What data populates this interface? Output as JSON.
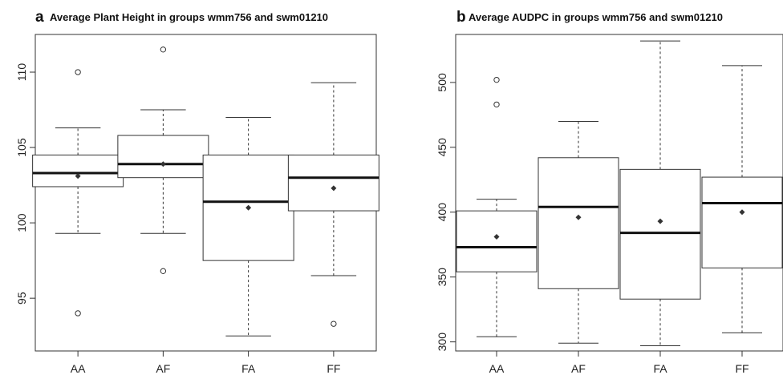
{
  "chart_data": [
    {
      "type": "box",
      "panel_letter": "a",
      "title": "Average Plant Height in groups wmm756 and swm01210",
      "xlabel": "",
      "ylabel": "",
      "categories": [
        "AA",
        "AF",
        "FA",
        "FF"
      ],
      "ylim": [
        91.5,
        112.5
      ],
      "yticks": [
        95,
        100,
        105,
        110
      ],
      "boxes": [
        {
          "category": "AA",
          "whisker_low": 99.3,
          "q1": 102.4,
          "median": 103.3,
          "q3": 104.5,
          "whisker_high": 106.3,
          "mean": 103.1,
          "outliers": [
            110.0,
            94.0
          ]
        },
        {
          "category": "AF",
          "whisker_low": 99.3,
          "q1": 103.0,
          "median": 103.9,
          "q3": 105.8,
          "whisker_high": 107.5,
          "mean": 103.9,
          "outliers": [
            111.5,
            96.8
          ]
        },
        {
          "category": "FA",
          "whisker_low": 92.5,
          "q1": 97.5,
          "median": 101.4,
          "q3": 104.5,
          "whisker_high": 107.0,
          "mean": 101.0,
          "outliers": []
        },
        {
          "category": "FF",
          "whisker_low": 96.5,
          "q1": 100.8,
          "median": 103.0,
          "q3": 104.5,
          "whisker_high": 109.3,
          "mean": 102.3,
          "outliers": [
            93.3
          ]
        }
      ],
      "grid": false,
      "legend": "none"
    },
    {
      "type": "box",
      "panel_letter": "b",
      "title": "Average AUDPC in groups wmm756 and swm01210",
      "xlabel": "",
      "ylabel": "",
      "categories": [
        "AA",
        "AF",
        "FA",
        "FF"
      ],
      "ylim": [
        293,
        537
      ],
      "yticks": [
        300,
        350,
        400,
        450,
        500
      ],
      "boxes": [
        {
          "category": "AA",
          "whisker_low": 304,
          "q1": 354,
          "median": 373,
          "q3": 401,
          "whisker_high": 410,
          "mean": 381,
          "outliers": [
            502,
            483
          ]
        },
        {
          "category": "AF",
          "whisker_low": 299,
          "q1": 341,
          "median": 404,
          "q3": 442,
          "whisker_high": 470,
          "mean": 396,
          "outliers": []
        },
        {
          "category": "FA",
          "whisker_low": 297,
          "q1": 333,
          "median": 384,
          "q3": 433,
          "whisker_high": 532,
          "mean": 393,
          "outliers": []
        },
        {
          "category": "FF",
          "whisker_low": 307,
          "q1": 357,
          "median": 407,
          "q3": 427,
          "whisker_high": 513,
          "mean": 400,
          "outliers": []
        }
      ],
      "grid": false,
      "legend": "none"
    }
  ]
}
